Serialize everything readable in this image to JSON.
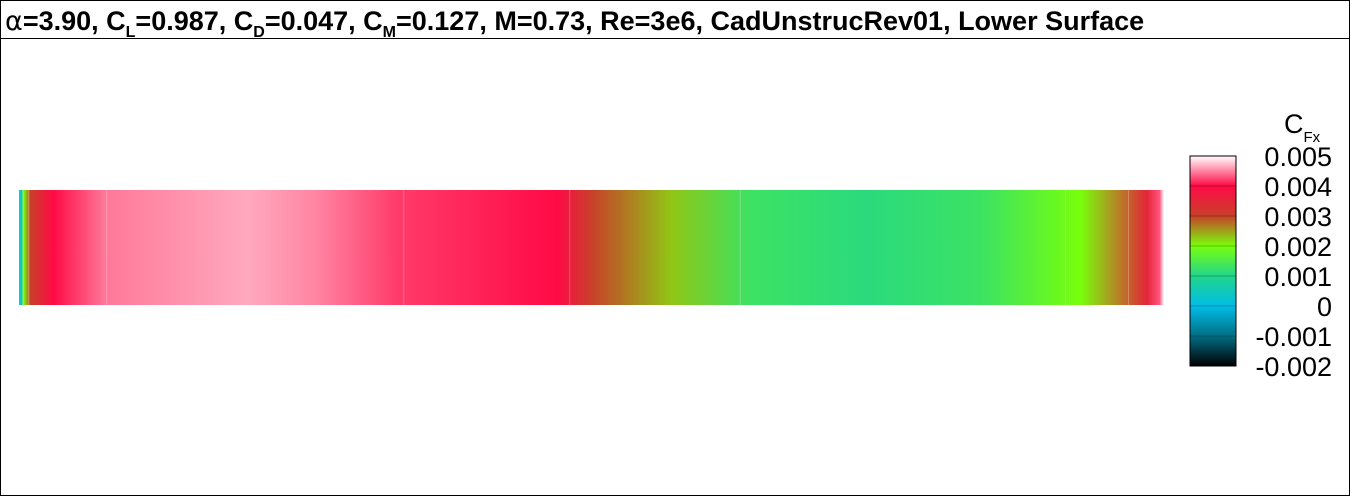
{
  "title": {
    "alpha_symbol": "α",
    "alpha_value": "=3.90, C",
    "cl_sub": "L",
    "cl_value": "=0.987, C",
    "cd_sub": "D",
    "cd_value": "=0.047, C",
    "cm_sub": "M",
    "cm_value": "=0.127, M=0.73, Re=3e6, CadUnstrucRev01, Lower Surface"
  },
  "chart_data": {
    "type": "heatmap",
    "colorbar": {
      "title_main": "C",
      "title_sub": "Fx",
      "range": [
        -0.002,
        0.005
      ],
      "tick_labels": [
        "0.005",
        "0.004",
        "0.003",
        "0.002",
        "0.001",
        "0",
        "-0.001",
        "-0.002"
      ],
      "tick_values": [
        0.005,
        0.004,
        0.003,
        0.002,
        0.001,
        0,
        -0.001,
        -0.002
      ],
      "levels": [
        {
          "from": -0.002,
          "to": -0.001,
          "color_low": "#000000",
          "color_high": "#006e85"
        },
        {
          "from": -0.001,
          "to": 0.0,
          "color_low": "#006e85",
          "color_high": "#00bde6"
        },
        {
          "from": 0.0,
          "to": 0.001,
          "color_low": "#00bde6",
          "color_high": "#22d68a"
        },
        {
          "from": 0.001,
          "to": 0.002,
          "color_low": "#22d68a",
          "color_high": "#78ff0c"
        },
        {
          "from": 0.002,
          "to": 0.003,
          "color_low": "#78ff0c",
          "color_high": "#c8402a"
        },
        {
          "from": 0.003,
          "to": 0.004,
          "color_low": "#c8402a",
          "color_high": "#ff0a45"
        },
        {
          "from": 0.004,
          "to": 0.005,
          "color_low": "#ff0a45",
          "color_high": "#ffffff"
        }
      ]
    },
    "surface_strip": {
      "stops": [
        {
          "pos": 0.0,
          "value": 0.001
        },
        {
          "pos": 0.002,
          "value": 0.0
        },
        {
          "pos": 0.004,
          "value": 0.002
        },
        {
          "pos": 0.01,
          "value": 0.003
        },
        {
          "pos": 0.03,
          "value": 0.004
        },
        {
          "pos": 0.075,
          "value": 0.00445
        },
        {
          "pos": 0.2,
          "value": 0.00465
        },
        {
          "pos": 0.26,
          "value": 0.0045
        },
        {
          "pos": 0.33,
          "value": 0.0042
        },
        {
          "pos": 0.47,
          "value": 0.004
        },
        {
          "pos": 0.5,
          "value": 0.003
        },
        {
          "pos": 0.57,
          "value": 0.0023
        },
        {
          "pos": 0.64,
          "value": 0.0013
        },
        {
          "pos": 0.74,
          "value": 0.0011
        },
        {
          "pos": 0.84,
          "value": 0.0013
        },
        {
          "pos": 0.927,
          "value": 0.002
        },
        {
          "pos": 0.985,
          "value": 0.0035
        },
        {
          "pos": 0.996,
          "value": 0.0043
        },
        {
          "pos": 1.0,
          "value": 0.005
        }
      ],
      "faint_vertical_lines": [
        0.0035,
        0.0085,
        0.0765,
        0.336,
        0.481,
        0.63,
        0.914,
        0.969
      ]
    }
  }
}
